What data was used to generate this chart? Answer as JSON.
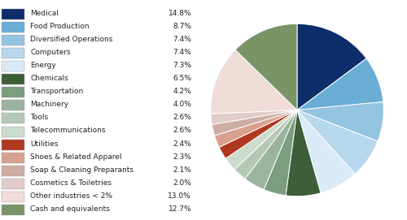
{
  "labels": [
    "Medical",
    "Food Production",
    "Diversified Operations",
    "Computers",
    "Energy",
    "Chemicals",
    "Transportation",
    "Machinery",
    "Tools",
    "Telecommunications",
    "Utilities",
    "Shoes & Related Apparel",
    "Soap & Cleaning Preparants",
    "Cosmetics & Toiletries",
    "Other industries < 2%",
    "Cash and equivalents"
  ],
  "values": [
    14.8,
    8.7,
    7.4,
    7.4,
    7.3,
    6.5,
    4.2,
    4.0,
    2.6,
    2.6,
    2.4,
    2.3,
    2.1,
    2.0,
    13.0,
    12.7
  ],
  "colors": [
    "#0d2d6b",
    "#6aaed6",
    "#93c4e0",
    "#b8d8ee",
    "#daeaf7",
    "#3d5e38",
    "#7a9e7e",
    "#9ab49e",
    "#b4c8b4",
    "#ccdccc",
    "#b03820",
    "#d9a090",
    "#ceada4",
    "#e0ccc8",
    "#f0ddd8",
    "#7a9468"
  ],
  "legend_pcts": [
    "14.8%",
    "8.7%",
    "7.4%",
    "7.4%",
    "7.3%",
    "6.5%",
    "4.2%",
    "4.0%",
    "2.6%",
    "2.6%",
    "2.4%",
    "2.3%",
    "2.1%",
    "2.0%",
    "13.0%",
    "12.7%"
  ],
  "startangle": 90,
  "background_color": "#ffffff"
}
